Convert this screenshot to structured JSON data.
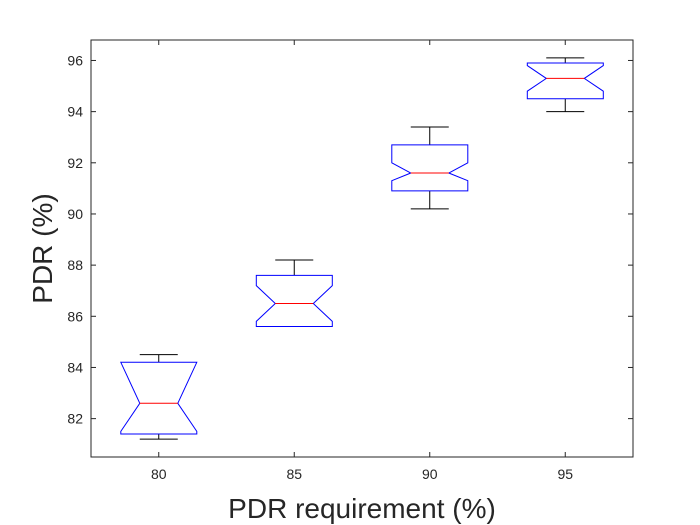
{
  "chart_data": {
    "type": "box",
    "title": "",
    "xlabel": "PDR requirement (%)",
    "ylabel": "PDR (%)",
    "categories": [
      "80",
      "85",
      "90",
      "95"
    ],
    "xlim": [
      77.5,
      97.5
    ],
    "ylim": [
      80.5,
      96.8
    ],
    "yticks": [
      82,
      84,
      86,
      88,
      90,
      92,
      94,
      96
    ],
    "notched": true,
    "grid": false,
    "legend": "none",
    "colors": {
      "box": "#0000ff",
      "median": "#ff0000",
      "whisker": "#000000",
      "axis": "#262626"
    },
    "boxes": [
      {
        "x": 80,
        "whisker_low": 81.2,
        "q1": 81.4,
        "notch_low": 81.5,
        "median": 82.6,
        "notch_high": 84.2,
        "q3": 84.2,
        "whisker_high": 84.5
      },
      {
        "x": 85,
        "whisker_low": 85.6,
        "q1": 85.6,
        "notch_low": 85.8,
        "median": 86.5,
        "notch_high": 87.2,
        "q3": 87.6,
        "whisker_high": 88.2
      },
      {
        "x": 90,
        "whisker_low": 90.2,
        "q1": 90.9,
        "notch_low": 91.3,
        "median": 91.6,
        "notch_high": 92.0,
        "q3": 92.7,
        "whisker_high": 93.4
      },
      {
        "x": 95,
        "whisker_low": 94.0,
        "q1": 94.5,
        "notch_low": 94.8,
        "median": 95.3,
        "notch_high": 95.8,
        "q3": 95.9,
        "whisker_high": 96.1
      }
    ]
  }
}
